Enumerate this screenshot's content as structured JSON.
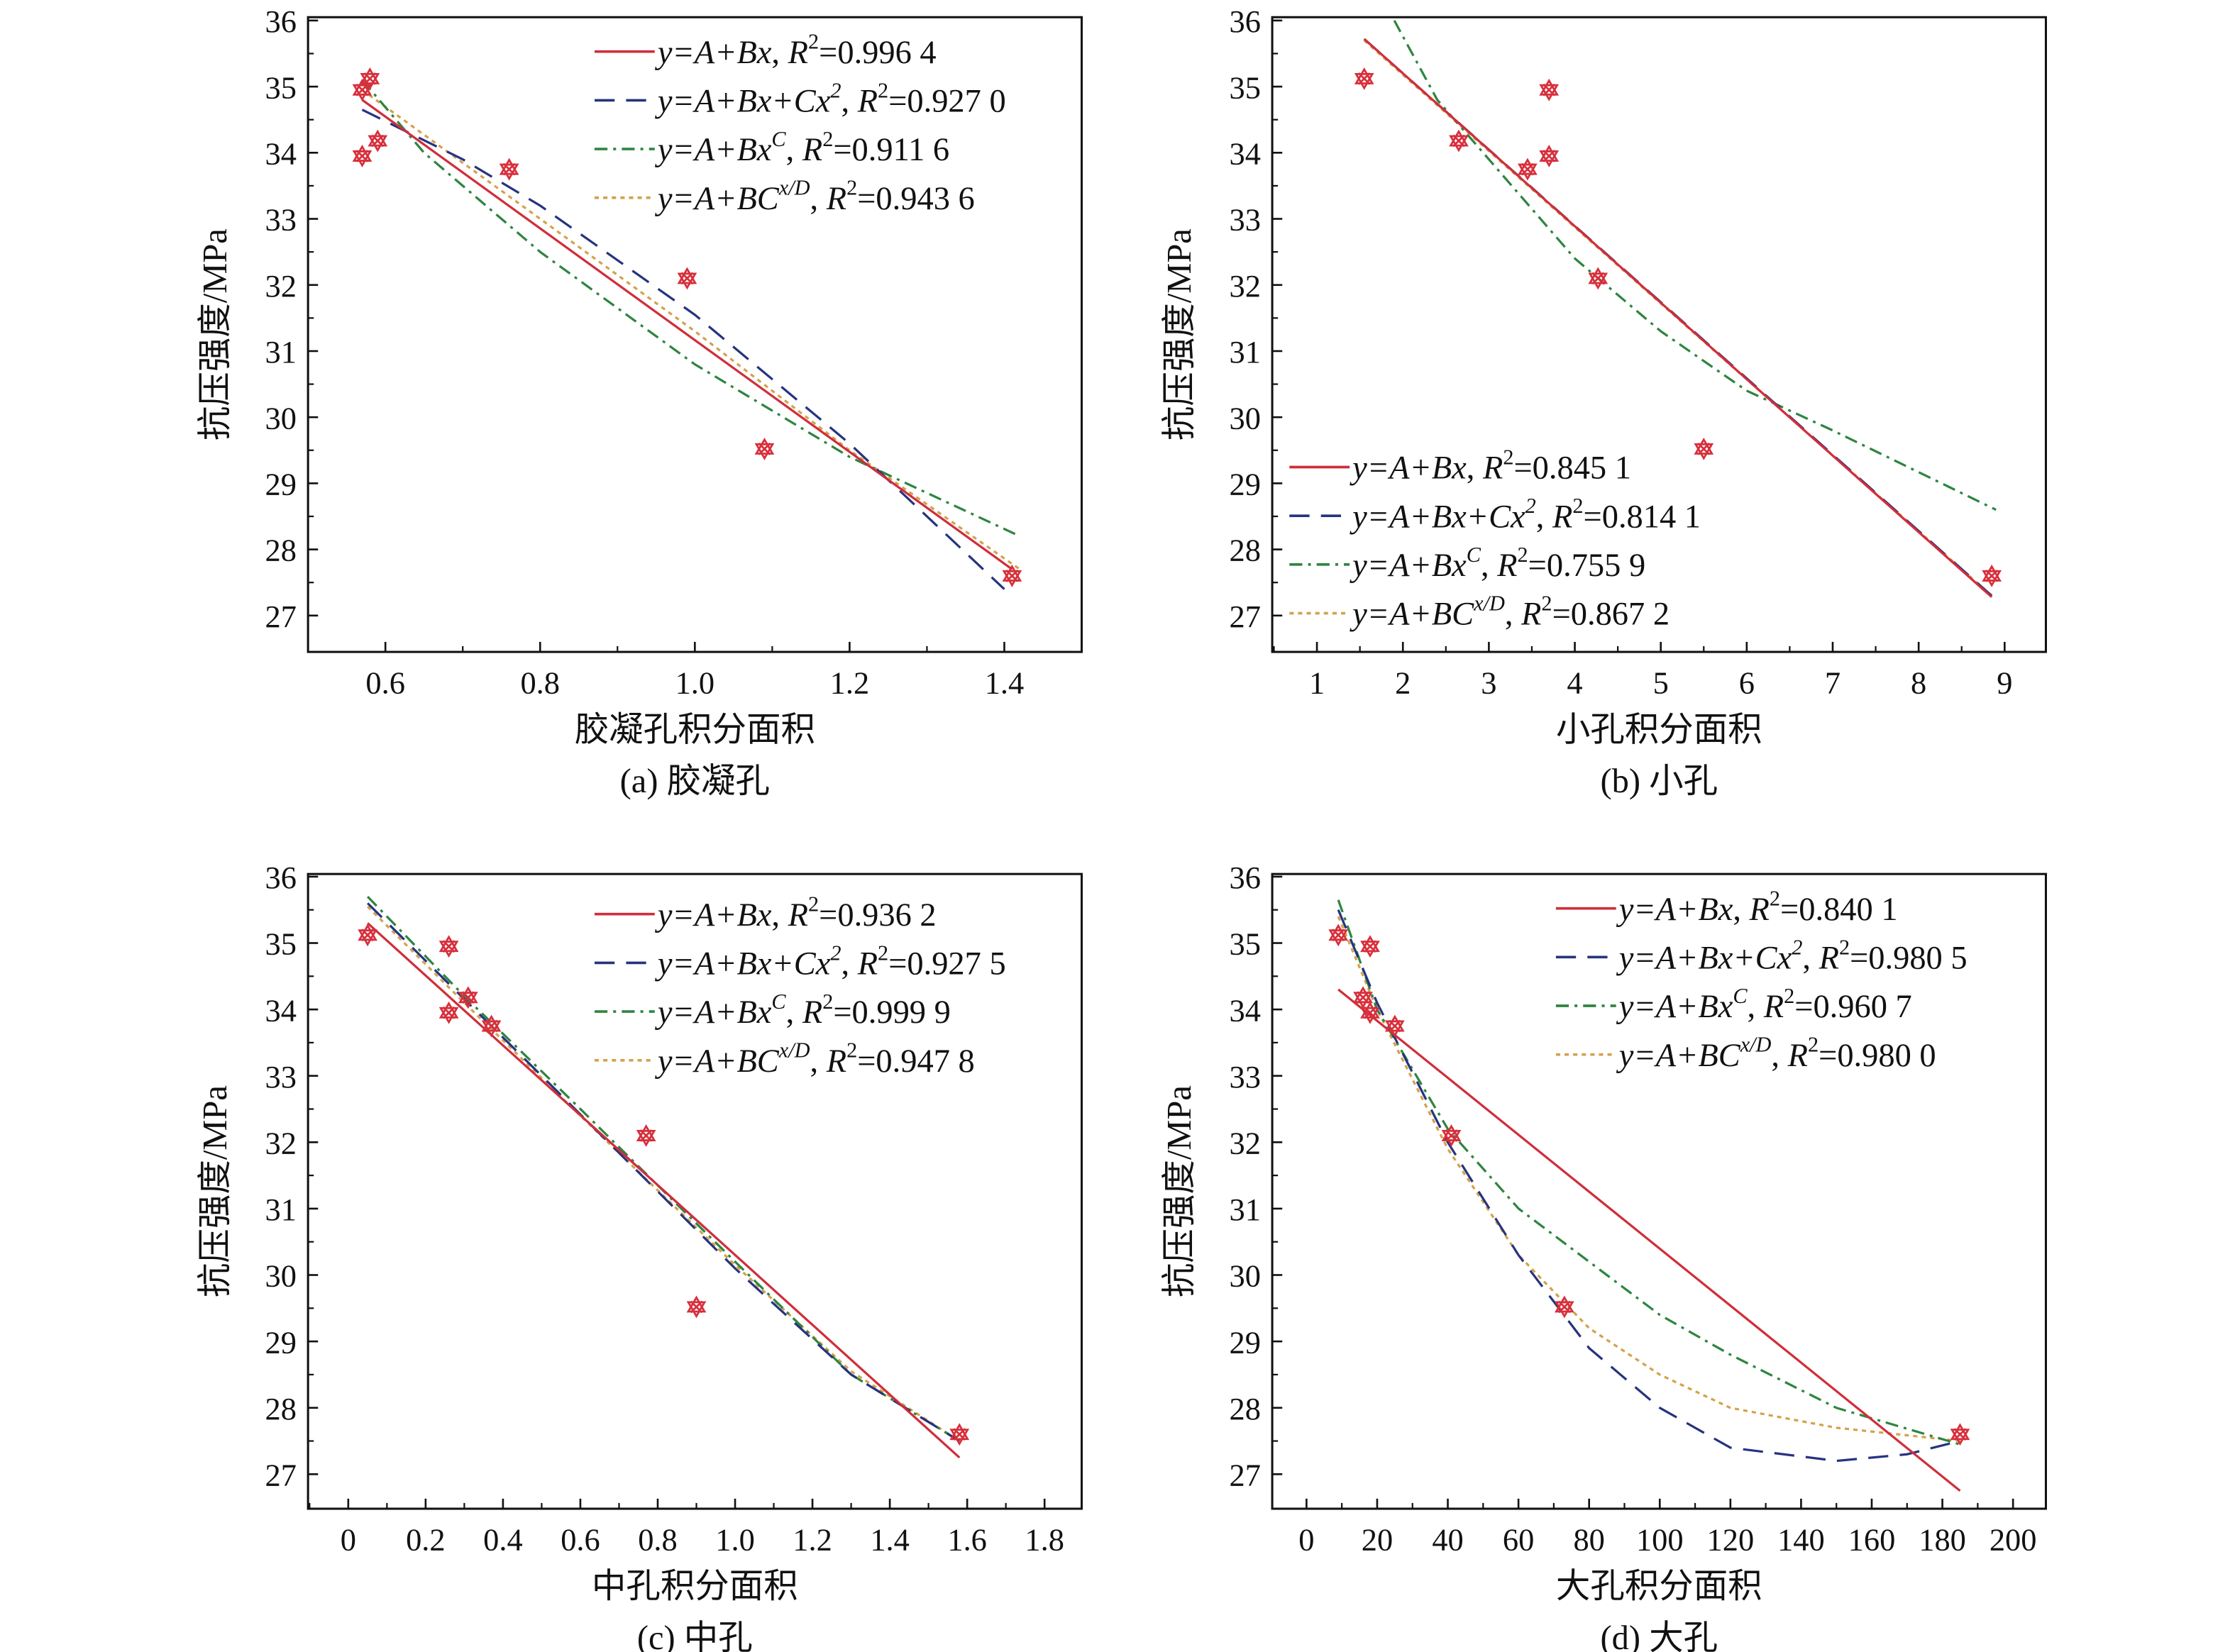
{
  "colors": {
    "linear": "#cf2e3a",
    "quadratic": "#26347f",
    "power": "#2e8540",
    "exponential": "#d4a24c",
    "marker": "#d7303c"
  },
  "chart_data": [
    {
      "type": "scatter",
      "caption": "(a) 胶凝孔",
      "xlabel": "胶凝孔积分面积",
      "ylabel": "抗压强度/MPa",
      "xlim": [
        0.5,
        1.5
      ],
      "ylim": [
        26.45,
        36.05
      ],
      "xticks": [
        "0.6",
        "0.8",
        "1.0",
        "1.2",
        "1.4"
      ],
      "yticks": [
        "27",
        "28",
        "29",
        "30",
        "31",
        "32",
        "33",
        "34",
        "35",
        "36"
      ],
      "legend_position": "top-right",
      "points": {
        "x": [
          0.57,
          0.58,
          0.57,
          0.59,
          0.76,
          0.99,
          1.09,
          1.41
        ],
        "y": [
          34.95,
          35.12,
          33.95,
          34.18,
          33.75,
          32.1,
          29.52,
          27.6
        ]
      },
      "series": [
        {
          "formula": "y=A+Bx",
          "sup": "",
          "r2": "0.996 4",
          "style": "linear",
          "x": [
            0.57,
            1.41
          ],
          "y": [
            34.8,
            27.7
          ]
        },
        {
          "formula": "y=A+Bx+Cx",
          "sup": "2",
          "r2": "0.927 0",
          "style": "quadratic",
          "x": [
            0.57,
            0.7,
            0.8,
            1.0,
            1.2,
            1.4
          ],
          "y": [
            34.65,
            33.9,
            33.2,
            31.55,
            29.6,
            27.4
          ]
        },
        {
          "formula": "y=A+Bx",
          "sup": "C",
          "r2": "0.911 6",
          "style": "power",
          "x": [
            0.57,
            0.65,
            0.8,
            1.0,
            1.2,
            1.42
          ],
          "y": [
            35.1,
            34.0,
            32.5,
            30.8,
            29.4,
            28.2
          ]
        },
        {
          "formula": "y=A+BC",
          "sup": "x/D",
          "r2": "0.943 6",
          "style": "exponential",
          "x": [
            0.57,
            0.8,
            1.0,
            1.2,
            1.42
          ],
          "y": [
            34.95,
            33.0,
            31.3,
            29.5,
            27.7
          ]
        }
      ]
    },
    {
      "type": "scatter",
      "caption": "(b) 小孔",
      "xlabel": "小孔积分面积",
      "ylabel": "抗压强度/MPa",
      "xlim": [
        0.48,
        9.48
      ],
      "ylim": [
        26.45,
        36.05
      ],
      "xticks": [
        "1",
        "2",
        "3",
        "4",
        "5",
        "6",
        "7",
        "8",
        "9"
      ],
      "yticks": [
        "27",
        "28",
        "29",
        "30",
        "31",
        "32",
        "33",
        "34",
        "35",
        "36"
      ],
      "legend_position": "bottom-left",
      "points": {
        "x": [
          1.55,
          2.65,
          3.45,
          3.7,
          3.7,
          4.27,
          5.5,
          8.85
        ],
        "y": [
          35.12,
          34.18,
          33.75,
          34.95,
          33.95,
          32.1,
          29.52,
          27.6
        ]
      },
      "series": [
        {
          "formula": "y=A+Bx",
          "sup": "",
          "r2": "0.845 1",
          "style": "linear",
          "x": [
            1.55,
            8.85
          ],
          "y": [
            35.72,
            27.28
          ]
        },
        {
          "formula": "y=A+Bx+Cx",
          "sup": "2",
          "r2": "0.814 1",
          "style": "quadratic",
          "x": [
            1.55,
            5,
            8.85
          ],
          "y": [
            35.72,
            31.74,
            27.3
          ]
        },
        {
          "formula": "y=A+Bx",
          "sup": "C",
          "r2": "0.755 9",
          "style": "power",
          "x": [
            1.9,
            2.4,
            3,
            4,
            5,
            6,
            7,
            8.9
          ],
          "y": [
            36.0,
            34.8,
            33.9,
            32.4,
            31.3,
            30.4,
            29.8,
            28.6
          ]
        },
        {
          "formula": "y=A+BC",
          "sup": "x/D",
          "r2": "0.867 2",
          "style": "exponential",
          "x": [
            1.55,
            5,
            8.85
          ],
          "y": [
            35.7,
            31.72,
            27.3
          ]
        }
      ]
    },
    {
      "type": "scatter",
      "caption": "(c) 中孔",
      "xlabel": "中孔积分面积",
      "ylabel": "抗压强度/MPa",
      "xlim": [
        -0.104,
        1.896
      ],
      "ylim": [
        26.48,
        36.04
      ],
      "xticks": [
        "0",
        "0.2",
        "0.4",
        "0.6",
        "0.8",
        "1.0",
        "1.2",
        "1.4",
        "1.6",
        "1.8"
      ],
      "yticks": [
        "27",
        "28",
        "29",
        "30",
        "31",
        "32",
        "33",
        "34",
        "35",
        "36"
      ],
      "legend_position": "top-right",
      "points": {
        "x": [
          0.05,
          0.26,
          0.26,
          0.31,
          0.37,
          0.77,
          0.9,
          1.58
        ],
        "y": [
          35.12,
          34.95,
          33.95,
          34.18,
          33.75,
          32.1,
          29.52,
          27.6
        ]
      },
      "series": [
        {
          "formula": "y=A+Bx",
          "sup": "",
          "r2": "0.936 2",
          "style": "linear",
          "x": [
            0.05,
            1.58
          ],
          "y": [
            35.3,
            27.25
          ]
        },
        {
          "formula": "y=A+Bx+Cx",
          "sup": "2",
          "r2": "0.927 5",
          "style": "quadratic",
          "x": [
            0.05,
            0.5,
            1.0,
            1.3,
            1.58
          ],
          "y": [
            35.6,
            33.0,
            30.1,
            28.5,
            27.5
          ]
        },
        {
          "formula": "y=A+Bx",
          "sup": "C",
          "r2": "0.999 9",
          "style": "power",
          "x": [
            0.05,
            0.3,
            0.6,
            1.0,
            1.3,
            1.58
          ],
          "y": [
            35.7,
            34.2,
            32.5,
            30.2,
            28.5,
            27.5
          ]
        },
        {
          "formula": "y=A+BC",
          "sup": "x/D",
          "r2": "0.947 8",
          "style": "exponential",
          "x": [
            0.05,
            0.3,
            0.6,
            1.0,
            1.3,
            1.58
          ],
          "y": [
            35.55,
            34.1,
            32.4,
            30.15,
            28.55,
            27.5
          ]
        }
      ]
    },
    {
      "type": "scatter",
      "caption": "(d) 大孔",
      "xlabel": "大孔积分面积",
      "ylabel": "抗压强度/MPa",
      "xlim": [
        -9.7,
        209.3
      ],
      "ylim": [
        26.48,
        36.04
      ],
      "xticks": [
        "0",
        "20",
        "40",
        "60",
        "80",
        "100",
        "120",
        "140",
        "160",
        "180",
        "200"
      ],
      "yticks": [
        "27",
        "28",
        "29",
        "30",
        "31",
        "32",
        "33",
        "34",
        "35",
        "36"
      ],
      "legend_position": "top-right",
      "points": {
        "x": [
          9,
          18,
          16,
          18,
          25,
          41,
          73,
          185
        ],
        "y": [
          35.12,
          34.95,
          34.18,
          33.95,
          33.75,
          32.1,
          29.52,
          27.6
        ]
      },
      "series": [
        {
          "formula": "y=A+Bx",
          "sup": "",
          "r2": "0.840 1",
          "style": "linear",
          "x": [
            9,
            185
          ],
          "y": [
            34.3,
            26.75
          ]
        },
        {
          "formula": "y=A+Bx+Cx",
          "sup": "2",
          "r2": "0.980 5",
          "style": "quadratic",
          "x": [
            9,
            20,
            40,
            60,
            80,
            100,
            120,
            150,
            170,
            185
          ],
          "y": [
            35.5,
            34.1,
            32.0,
            30.3,
            28.9,
            28.0,
            27.4,
            27.2,
            27.3,
            27.5
          ]
        },
        {
          "formula": "y=A+Bx",
          "sup": "C",
          "r2": "0.960 7",
          "style": "power",
          "x": [
            9,
            20,
            40,
            60,
            80,
            100,
            120,
            150,
            185
          ],
          "y": [
            35.65,
            34.0,
            32.2,
            31.0,
            30.2,
            29.4,
            28.8,
            28.0,
            27.45
          ]
        },
        {
          "formula": "y=A+BC",
          "sup": "x/D",
          "r2": "0.980 0",
          "style": "exponential",
          "x": [
            9,
            20,
            40,
            60,
            80,
            100,
            120,
            150,
            185
          ],
          "y": [
            35.4,
            34.0,
            31.9,
            30.3,
            29.2,
            28.5,
            28.0,
            27.7,
            27.5
          ]
        }
      ]
    }
  ]
}
